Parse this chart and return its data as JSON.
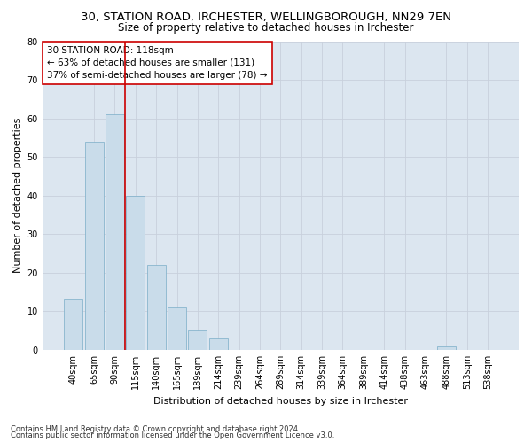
{
  "title_line1": "30, STATION ROAD, IRCHESTER, WELLINGBOROUGH, NN29 7EN",
  "title_line2": "Size of property relative to detached houses in Irchester",
  "xlabel": "Distribution of detached houses by size in Irchester",
  "ylabel": "Number of detached properties",
  "categories": [
    "40sqm",
    "65sqm",
    "90sqm",
    "115sqm",
    "140sqm",
    "165sqm",
    "189sqm",
    "214sqm",
    "239sqm",
    "264sqm",
    "289sqm",
    "314sqm",
    "339sqm",
    "364sqm",
    "389sqm",
    "414sqm",
    "438sqm",
    "463sqm",
    "488sqm",
    "513sqm",
    "538sqm"
  ],
  "values": [
    13,
    54,
    61,
    40,
    22,
    11,
    5,
    3,
    0,
    0,
    0,
    0,
    0,
    0,
    0,
    0,
    0,
    0,
    1,
    0,
    0
  ],
  "bar_color": "#c9dcea",
  "bar_edge_color": "#7aadc8",
  "vline_x_index": 3,
  "annotation_text": "30 STATION ROAD: 118sqm\n← 63% of detached houses are smaller (131)\n37% of semi-detached houses are larger (78) →",
  "annotation_box_color": "#ffffff",
  "annotation_box_edge": "#cc0000",
  "vline_color": "#cc0000",
  "ylim": [
    0,
    80
  ],
  "yticks": [
    0,
    10,
    20,
    30,
    40,
    50,
    60,
    70,
    80
  ],
  "grid_color": "#c8d0dc",
  "bg_color": "#dce6f0",
  "footer_line1": "Contains HM Land Registry data © Crown copyright and database right 2024.",
  "footer_line2": "Contains public sector information licensed under the Open Government Licence v3.0.",
  "title_fontsize": 9.5,
  "subtitle_fontsize": 8.5,
  "xlabel_fontsize": 8,
  "ylabel_fontsize": 8,
  "tick_fontsize": 7,
  "annotation_fontsize": 7.5,
  "footer_fontsize": 6
}
